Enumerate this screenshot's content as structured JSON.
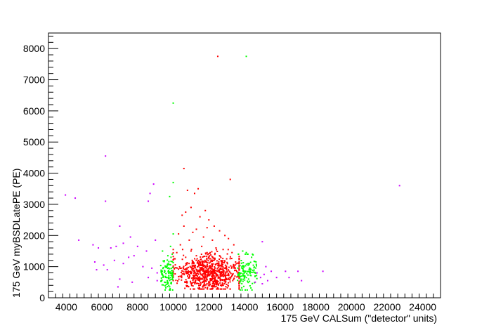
{
  "chart_data": {
    "type": "scatter",
    "title": "",
    "xlabel": "175 GeV CALSum (\"detector\" units)",
    "ylabel": "175 GeV myBSDLatePE (PE)",
    "xlim": [
      3000,
      25000
    ],
    "ylim": [
      0,
      8500
    ],
    "x_ticks": [
      4000,
      6000,
      8000,
      10000,
      12000,
      14000,
      16000,
      18000,
      20000,
      22000,
      24000
    ],
    "y_ticks": [
      0,
      1000,
      2000,
      3000,
      4000,
      5000,
      6000,
      7000,
      8000
    ],
    "grid": false,
    "legend": "none",
    "series": [
      {
        "color": "#ff0000",
        "points": [
          [
            12500,
            7750
          ],
          [
            10600,
            4150
          ],
          [
            13200,
            3800
          ],
          [
            10800,
            3450
          ],
          [
            11400,
            3500
          ],
          [
            11200,
            3350
          ],
          [
            11800,
            2800
          ],
          [
            10500,
            2650
          ],
          [
            10700,
            2750
          ],
          [
            11000,
            2900
          ],
          [
            11500,
            2600
          ],
          [
            12000,
            2500
          ],
          [
            12300,
            2300
          ],
          [
            11300,
            2200
          ],
          [
            10600,
            2300
          ],
          [
            11900,
            2250
          ],
          [
            12600,
            2150
          ],
          [
            12900,
            2000
          ],
          [
            13100,
            1900
          ],
          [
            10300,
            2050
          ],
          [
            11100,
            2100
          ],
          [
            11700,
            1950
          ],
          [
            10900,
            1850
          ],
          [
            12200,
            1850
          ],
          [
            13400,
            1700
          ],
          [
            10400,
            1700
          ],
          [
            11600,
            1650
          ],
          [
            12400,
            1600
          ],
          [
            12800,
            1550
          ],
          [
            13300,
            1450
          ],
          [
            10200,
            1450
          ],
          [
            11000,
            1500
          ],
          [
            11900,
            1450
          ],
          [
            12600,
            1350
          ],
          [
            13000,
            1250
          ],
          [
            10100,
            1250
          ],
          [
            10700,
            1300
          ],
          [
            11300,
            1350
          ],
          [
            12100,
            1250
          ],
          [
            13500,
            1150
          ]
        ],
        "cluster": {
          "count": 800,
          "x_mean": 12000,
          "x_sd": 950,
          "y_mean": 800,
          "y_sd": 280,
          "x_min": 10000,
          "x_max": 13700,
          "y_min": 280,
          "y_max": 1550
        }
      },
      {
        "color": "#00ff00",
        "points": [
          [
            14100,
            7750
          ],
          [
            10000,
            6250
          ],
          [
            10000,
            3700
          ],
          [
            9800,
            3250
          ],
          [
            10000,
            2050
          ],
          [
            9400,
            1500
          ],
          [
            9700,
            1350
          ],
          [
            9850,
            1650
          ],
          [
            14100,
            1450
          ],
          [
            14400,
            1300
          ],
          [
            14200,
            1100
          ],
          [
            13900,
            1500
          ],
          [
            14300,
            850
          ],
          [
            14600,
            700
          ],
          [
            13800,
            600
          ]
        ],
        "cluster": {
          "count": 220,
          "bands": [
            [
              9300,
              10000
            ],
            [
              13600,
              14700
            ]
          ],
          "y_mean": 750,
          "y_sd": 280,
          "y_min": 250,
          "y_max": 1400
        }
      },
      {
        "color": "#cc00ff",
        "points": [
          [
            6200,
            4550
          ],
          [
            3950,
            3300
          ],
          [
            4500,
            3200
          ],
          [
            6200,
            3100
          ],
          [
            8900,
            3650
          ],
          [
            8700,
            3350
          ],
          [
            8600,
            3100
          ],
          [
            22700,
            3600
          ],
          [
            7000,
            2300
          ],
          [
            4700,
            1850
          ],
          [
            5500,
            1700
          ],
          [
            5800,
            1600
          ],
          [
            6500,
            1600
          ],
          [
            6800,
            1650
          ],
          [
            7600,
            1950
          ],
          [
            7200,
            1750
          ],
          [
            8000,
            1650
          ],
          [
            8500,
            1500
          ],
          [
            9000,
            1850
          ],
          [
            7800,
            1350
          ],
          [
            5600,
            1150
          ],
          [
            6100,
            1050
          ],
          [
            6300,
            900
          ],
          [
            5700,
            900
          ],
          [
            6700,
            1200
          ],
          [
            7200,
            1100
          ],
          [
            7500,
            1300
          ],
          [
            8300,
            1000
          ],
          [
            8800,
            950
          ],
          [
            9100,
            800
          ],
          [
            7000,
            600
          ],
          [
            7700,
            500
          ],
          [
            6900,
            350
          ],
          [
            8600,
            650
          ],
          [
            9100,
            550
          ],
          [
            15000,
            1800
          ],
          [
            15200,
            1000
          ],
          [
            15500,
            850
          ],
          [
            15800,
            650
          ],
          [
            15000,
            450
          ],
          [
            14700,
            800
          ],
          [
            14900,
            650
          ],
          [
            15300,
            550
          ],
          [
            16300,
            850
          ],
          [
            16500,
            650
          ],
          [
            17000,
            850
          ],
          [
            17200,
            550
          ],
          [
            18400,
            850
          ],
          [
            14600,
            500
          ],
          [
            15100,
            750
          ]
        ]
      }
    ]
  }
}
